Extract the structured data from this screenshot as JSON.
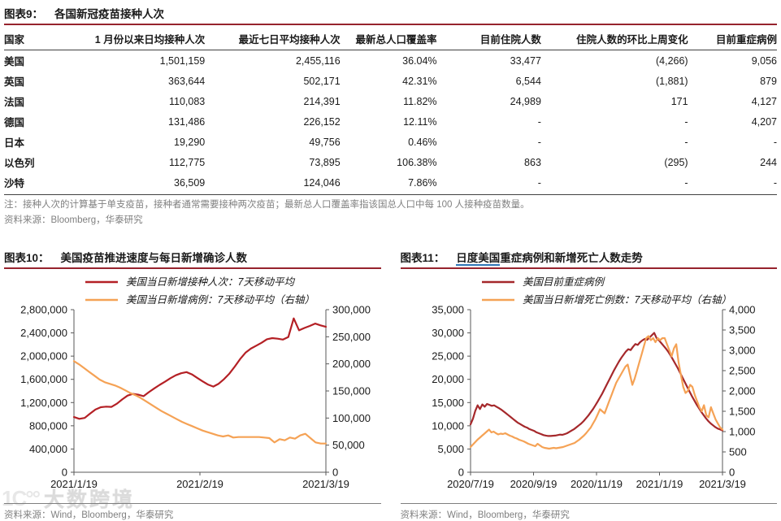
{
  "table_section": {
    "fig_label": "图表9：",
    "title": "各国新冠疫苗接种人次",
    "columns": [
      "国家",
      "1 月份以来日均接种人次",
      "最近七日平均接种人次",
      "最新总人口覆盖率",
      "目前住院人数",
      "住院人数的环比上周变化",
      "目前重症病例"
    ],
    "rows": [
      [
        "美国",
        "1,501,159",
        "2,455,116",
        "36.04%",
        "33,477",
        "(4,266)",
        "9,056"
      ],
      [
        "英国",
        "363,644",
        "502,171",
        "42.31%",
        "6,544",
        "(1,881)",
        "879"
      ],
      [
        "法国",
        "110,083",
        "214,391",
        "11.82%",
        "24,989",
        "171",
        "4,127"
      ],
      [
        "德国",
        "131,486",
        "226,152",
        "12.11%",
        "-",
        "-",
        "4,207"
      ],
      [
        "日本",
        "19,290",
        "49,756",
        "0.46%",
        "-",
        "-",
        "-"
      ],
      [
        "以色列",
        "112,775",
        "73,895",
        "106.38%",
        "863",
        "(295)",
        "244"
      ],
      [
        "沙特",
        "36,509",
        "124,046",
        "7.86%",
        "-",
        "-",
        "-"
      ]
    ],
    "note": "注：接种人次的计算基于单支疫苗，接种者通常需要接种两次疫苗；最新总人口覆盖率指该国总人口中每 100 人接种疫苗数量。",
    "source": "资料来源：Bloomberg，华泰研究"
  },
  "chart_data": [
    {
      "type": "line",
      "fig_label": "图表10：",
      "title": "美国疫苗推进速度与每日新增确诊人数",
      "title_underlined": "",
      "title_rest": "",
      "x_labels": [
        "2021/1/19",
        "2021/2/19",
        "2021/3/19"
      ],
      "left_axis": {
        "min": 0,
        "max": 2800000,
        "step": 400000
      },
      "right_axis": {
        "min": 0,
        "max": 300000,
        "step": 50000
      },
      "legend_position": "top-left",
      "grid": false,
      "series": [
        {
          "name": "美国当日新增接种人次：7天移动平均",
          "axis": "left",
          "color": "#b42025",
          "values": [
            950000,
            920000,
            935000,
            1010000,
            1080000,
            1120000,
            1130000,
            1125000,
            1180000,
            1255000,
            1320000,
            1350000,
            1335000,
            1310000,
            1380000,
            1445000,
            1505000,
            1560000,
            1620000,
            1670000,
            1705000,
            1725000,
            1685000,
            1625000,
            1565000,
            1510000,
            1475000,
            1525000,
            1605000,
            1700000,
            1820000,
            1950000,
            2060000,
            2130000,
            2180000,
            2230000,
            2290000,
            2310000,
            2300000,
            2285000,
            2330000,
            2650000,
            2445000,
            2485000,
            2520000,
            2560000,
            2530000,
            2505000
          ]
        },
        {
          "name": "美国当日新增病例：7天移动平均（右轴）",
          "axis": "right",
          "color": "#f5a255",
          "values": [
            205000,
            199000,
            192000,
            185000,
            178000,
            171000,
            166000,
            163000,
            160000,
            156000,
            151000,
            146000,
            142000,
            137000,
            131000,
            125000,
            119000,
            113000,
            108000,
            103000,
            98000,
            93000,
            89000,
            85000,
            81000,
            77000,
            74000,
            71000,
            68000,
            66000,
            68000,
            64000,
            65000,
            65000,
            65000,
            65000,
            65000,
            64000,
            63000,
            55000,
            61000,
            59000,
            64000,
            62000,
            68000,
            71000,
            63000,
            55000,
            53000,
            53000
          ]
        }
      ],
      "source": "资料来源：Wind，Bloomberg，华泰研究"
    },
    {
      "type": "line",
      "fig_label": "图表11：",
      "title": "日度美国重症病例和新增死亡人数走势",
      "title_underlined": "日度美国",
      "title_rest": "重症病例和新增死亡人数走势",
      "x_labels": [
        "2020/7/19",
        "2020/9/19",
        "2020/11/19",
        "2021/1/19",
        "2021/3/19"
      ],
      "left_axis": {
        "min": 0,
        "max": 35000,
        "step": 5000
      },
      "right_axis": {
        "min": 0,
        "max": 4000,
        "step": 500
      },
      "legend_position": "top-left",
      "grid": false,
      "series": [
        {
          "name": "美国目前重症病例",
          "axis": "left",
          "color": "#a5282b",
          "values": [
            10300,
            11500,
            13200,
            14400,
            13600,
            14600,
            14100,
            14700,
            14500,
            14300,
            14400,
            14100,
            13800,
            13500,
            13100,
            12700,
            12300,
            11900,
            11500,
            11100,
            10700,
            10400,
            10100,
            9800,
            9600,
            9300,
            9100,
            8900,
            8600,
            8400,
            8200,
            8000,
            7900,
            7800,
            7800,
            7850,
            7900,
            8000,
            8100,
            8050,
            8200,
            8400,
            8700,
            9000,
            9300,
            9700,
            10100,
            10500,
            11000,
            11600,
            12200,
            12900,
            13600,
            14400,
            15200,
            16100,
            17000,
            18000,
            19000,
            20000,
            21000,
            22000,
            22900,
            23800,
            24600,
            25300,
            26000,
            26500,
            26300,
            27000,
            27600,
            27400,
            28000,
            28400,
            28700,
            28500,
            29000,
            29500,
            30000,
            28900,
            28400,
            27800,
            27200,
            26600,
            25900,
            25100,
            24200,
            23300,
            22400,
            21400,
            20400,
            19400,
            18400,
            17400,
            16400,
            15500,
            14600,
            13800,
            13000,
            12300,
            11600,
            11000,
            10500,
            10100,
            9700,
            9400,
            9200,
            9000
          ]
        },
        {
          "name": "美国当日新增死亡例数：7天移动平均（右轴）",
          "axis": "right",
          "color": "#f5a255",
          "values": [
            620,
            680,
            740,
            800,
            850,
            900,
            950,
            1000,
            1050,
            980,
            1000,
            960,
            930,
            950,
            940,
            960,
            930,
            900,
            880,
            850,
            830,
            800,
            780,
            760,
            730,
            700,
            680,
            660,
            640,
            700,
            660,
            620,
            600,
            590,
            580,
            590,
            600,
            590,
            600,
            610,
            620,
            640,
            660,
            680,
            700,
            720,
            760,
            800,
            850,
            900,
            960,
            1030,
            1100,
            1200,
            1300,
            1420,
            1550,
            1500,
            1450,
            1600,
            1750,
            1900,
            2050,
            2200,
            2300,
            2400,
            2500,
            2600,
            2650,
            2400,
            2150,
            2300,
            2500,
            2700,
            2900,
            3100,
            3300,
            3350,
            3250,
            3300,
            3200,
            3300,
            3250,
            3300,
            3300,
            3150,
            3000,
            2850,
            3050,
            3150,
            2700,
            2400,
            2100,
            1950,
            2000,
            2150,
            2100,
            1900,
            1750,
            1600,
            1500,
            1650,
            1400,
            1350,
            1600,
            1450,
            1300,
            1200,
            1100,
            1050
          ]
        }
      ],
      "source": "资料来源：Wind，Bloomberg，华泰研究"
    }
  ],
  "watermark": {
    "logo": "1C°°",
    "text": "大数跨境"
  },
  "colors": {
    "accent_maroon": "#96232d",
    "link_blue": "#2e75b6",
    "axis": "#595959",
    "muted_text": "#808080"
  }
}
